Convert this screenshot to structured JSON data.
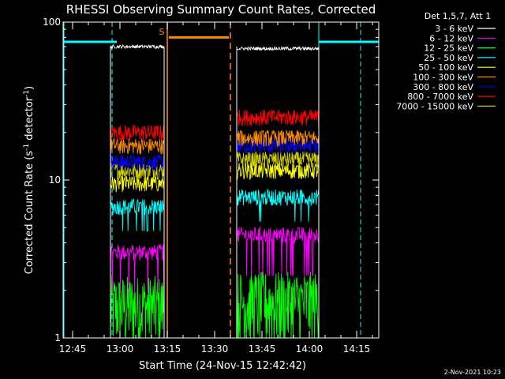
{
  "chart_data": {
    "type": "line",
    "title": "RHESSI Observing Summary Count Rates, Corrected",
    "xlabel": "Start Time (24-Nov-15 12:42:42)",
    "ylabel_main": "Corrected Count Rate (s",
    "ylabel_sup1": "-1",
    "ylabel_mid": " detector",
    "ylabel_sup2": "-1",
    "ylabel_end": ")",
    "y_scale": "log",
    "ylim": [
      1,
      100
    ],
    "x_range": [
      "12:42",
      "14:22"
    ],
    "x_tick_labels": [
      "12:45",
      "13:00",
      "13:15",
      "13:30",
      "13:45",
      "14:00",
      "14:15"
    ],
    "y_tick_labels": [
      "1",
      "10",
      "100"
    ],
    "legend_title": "Det 1,5,7, Att 1",
    "legend_position": "right",
    "saa_marker": "S",
    "timestamp": "2-Nov-2021 10:23",
    "series": [
      {
        "name": "3 - 6 keV",
        "color": "#ffffff",
        "level_seg1": 70,
        "level_seg2": 68
      },
      {
        "name": "6 - 12 keV",
        "color": "#ff00ff",
        "level_seg1": 3.5,
        "level_seg2": 4.5
      },
      {
        "name": "12 - 25 keV",
        "color": "#00ff00",
        "level_seg1": 1.6,
        "level_seg2": 1.7
      },
      {
        "name": "25 - 50 keV",
        "color": "#00ffff",
        "level_seg1": 6.8,
        "level_seg2": 7.8
      },
      {
        "name": "50 - 100 keV",
        "color": "#ffff00",
        "level_seg1": 9.5,
        "level_seg2": 11.5
      },
      {
        "name": "100 - 300 keV",
        "color": "#ff8c00",
        "level_seg1": 16.5,
        "level_seg2": 18.5
      },
      {
        "name": "300 - 800 keV",
        "color": "#0000ff",
        "level_seg1": 13,
        "level_seg2": 16.5
      },
      {
        "name": "800 - 7000 keV",
        "color": "#ff0000",
        "level_seg1": 20,
        "level_seg2": 25
      },
      {
        "name": "7000 - 15000 keV",
        "color": "#cccc00",
        "level_seg1": 11.5,
        "level_seg2": 13.5
      }
    ],
    "data_segments": [
      [
        "12:57",
        "13:14"
      ],
      [
        "13:37",
        "14:03"
      ]
    ],
    "saa_interval": [
      "13:15",
      "13:35"
    ],
    "night_intervals": [
      [
        "12:42",
        "12:59"
      ],
      [
        "14:03",
        "14:22"
      ]
    ]
  }
}
